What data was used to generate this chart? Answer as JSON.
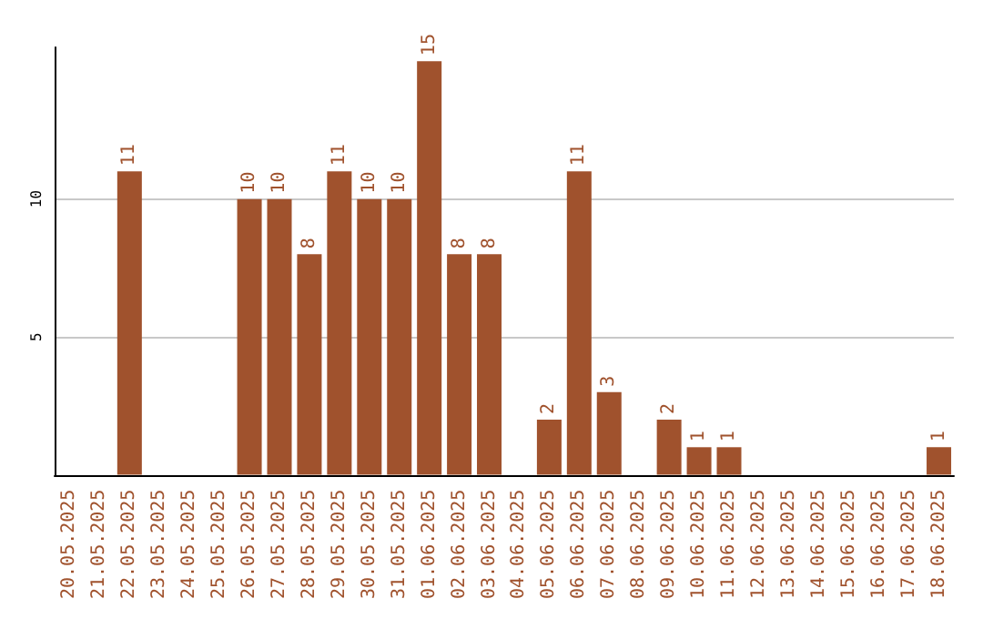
{
  "chart_data": {
    "type": "bar",
    "categories": [
      "20.05.2025",
      "21.05.2025",
      "22.05.2025",
      "23.05.2025",
      "24.05.2025",
      "25.05.2025",
      "26.05.2025",
      "27.05.2025",
      "28.05.2025",
      "29.05.2025",
      "30.05.2025",
      "31.05.2025",
      "01.06.2025",
      "02.06.2025",
      "03.06.2025",
      "04.06.2025",
      "05.06.2025",
      "06.06.2025",
      "07.06.2025",
      "08.06.2025",
      "09.06.2025",
      "10.06.2025",
      "11.06.2025",
      "12.06.2025",
      "13.06.2025",
      "14.06.2025",
      "15.06.2025",
      "16.06.2025",
      "17.06.2025",
      "18.06.2025"
    ],
    "values": [
      0,
      0,
      11,
      0,
      0,
      0,
      10,
      10,
      8,
      11,
      10,
      10,
      15,
      8,
      8,
      0,
      2,
      11,
      3,
      0,
      2,
      1,
      1,
      0,
      0,
      0,
      0,
      0,
      0,
      1
    ],
    "value_labels": [
      null,
      null,
      "11",
      null,
      null,
      null,
      "10",
      "10",
      "8",
      "11",
      "10",
      "10",
      "15",
      "8",
      "8",
      null,
      "2",
      "11",
      "3",
      null,
      "2",
      "1",
      "1",
      null,
      null,
      null,
      null,
      null,
      null,
      "1"
    ],
    "color": "#a0522d",
    "ylim": [
      0,
      15.5
    ],
    "yticks": [
      5,
      10
    ],
    "grid": "y"
  }
}
